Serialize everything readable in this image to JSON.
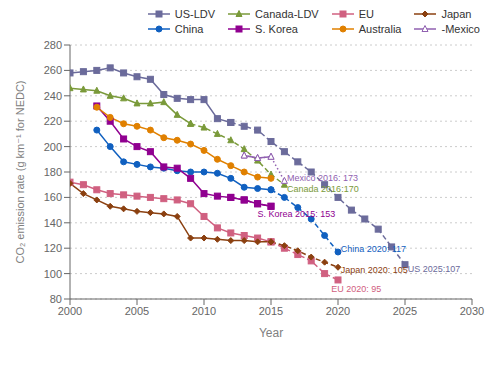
{
  "chart_data": {
    "type": "line",
    "xlabel": "Year",
    "ylabel": "CO₂ emission rate (g km⁻¹ for NEDC)",
    "xlim": [
      2000,
      2030
    ],
    "ylim": [
      80,
      280
    ],
    "xticks": [
      2000,
      2005,
      2010,
      2015,
      2020,
      2025,
      2030
    ],
    "yticks": [
      80,
      100,
      120,
      140,
      160,
      180,
      200,
      220,
      240,
      260,
      280
    ],
    "grid": true,
    "legend": "upper right",
    "series": [
      {
        "name": "US-LDV",
        "color": "#6b6b9b",
        "marker": "square",
        "line_style": "solid",
        "x": [
          2000,
          2001,
          2002,
          2003,
          2004,
          2005,
          2006,
          2007,
          2008,
          2009,
          2010,
          2011,
          2012
        ],
        "values": [
          258,
          259,
          260,
          262,
          258,
          255,
          253,
          241,
          238,
          237,
          237,
          222,
          219
        ],
        "target": {
          "x": [
            2012,
            2013,
            2014,
            2015,
            2016,
            2017,
            2018,
            2019,
            2020,
            2021,
            2022,
            2023,
            2024,
            2025
          ],
          "values": [
            219,
            216,
            213,
            204,
            196,
            188,
            180,
            170,
            160,
            150,
            143,
            135,
            121,
            107
          ],
          "line_style": "dashed"
        }
      },
      {
        "name": "Canada-LDV",
        "color": "#7a9a3a",
        "marker": "triangle",
        "line_style": "solid",
        "x": [
          2000,
          2001,
          2002,
          2003,
          2004,
          2005,
          2006,
          2007,
          2008,
          2009
        ],
        "values": [
          246,
          245,
          244,
          240,
          238,
          234,
          234,
          235,
          225,
          218
        ],
        "target": {
          "x": [
            2009,
            2010,
            2011,
            2012,
            2013,
            2014,
            2015,
            2016
          ],
          "values": [
            218,
            215,
            210,
            205,
            198,
            189,
            178,
            170
          ],
          "line_style": "dashed"
        }
      },
      {
        "name": "EU",
        "color": "#d06080",
        "marker": "square",
        "line_style": "solid",
        "x": [
          2000,
          2001,
          2002,
          2003,
          2004,
          2005,
          2006,
          2007,
          2008,
          2009,
          2010,
          2011,
          2012,
          2013,
          2014,
          2015
        ],
        "values": [
          172,
          170,
          166,
          163,
          162,
          161,
          160,
          159,
          158,
          155,
          145,
          136,
          132,
          130,
          128,
          125
        ],
        "target": {
          "x": [
            2015,
            2016,
            2017,
            2018,
            2019,
            2020
          ],
          "values": [
            125,
            120,
            115,
            110,
            100,
            95
          ],
          "line_style": "dashed"
        }
      },
      {
        "name": "Japan",
        "color": "#8b4010",
        "marker": "diamond",
        "line_style": "solid",
        "x": [
          2000,
          2001,
          2002,
          2003,
          2004,
          2005,
          2006,
          2007,
          2008,
          2009,
          2010,
          2011,
          2012,
          2013,
          2014,
          2015
        ],
        "values": [
          171,
          163,
          158,
          153,
          151,
          149,
          148,
          147,
          145,
          128,
          128,
          127,
          126,
          126,
          125,
          125
        ],
        "target": {
          "x": [
            2015,
            2016,
            2017,
            2018,
            2019,
            2020
          ],
          "values": [
            125,
            122,
            118,
            113,
            109,
            105
          ],
          "line_style": "dashed"
        }
      },
      {
        "name": "China",
        "color": "#1060c0",
        "marker": "circle",
        "line_style": "solid",
        "x": [
          2002,
          2003,
          2004,
          2005,
          2006,
          2007,
          2008,
          2009,
          2010,
          2011,
          2012,
          2013,
          2014,
          2015
        ],
        "values": [
          213,
          200,
          188,
          186,
          184,
          183,
          181,
          180,
          180,
          179,
          175,
          168,
          167,
          166
        ],
        "target": {
          "x": [
            2015,
            2016,
            2017,
            2018,
            2019,
            2020
          ],
          "values": [
            166,
            160,
            152,
            143,
            130,
            117
          ],
          "line_style": "dashed"
        }
      },
      {
        "name": "S. Korea",
        "color": "#900090",
        "marker": "square",
        "line_style": "solid",
        "x": [
          2002,
          2003,
          2004,
          2005,
          2006,
          2007,
          2008,
          2009,
          2010,
          2011,
          2012,
          2013,
          2014,
          2015
        ],
        "values": [
          232,
          220,
          206,
          200,
          196,
          184,
          183,
          175,
          163,
          161,
          160,
          158,
          155,
          153
        ],
        "target": {
          "x": [
            2012,
            2013,
            2014,
            2015
          ],
          "values": [
            160,
            158,
            155,
            153
          ],
          "line_style": "dashed"
        }
      },
      {
        "name": "Australia",
        "color": "#e08000",
        "marker": "circle",
        "line_style": "solid",
        "x": [
          2002,
          2003,
          2004,
          2005,
          2006,
          2007,
          2008,
          2009,
          2010,
          2011,
          2012,
          2013,
          2014,
          2015
        ],
        "values": [
          231,
          223,
          218,
          216,
          213,
          207,
          205,
          202,
          197,
          190,
          185,
          180,
          176,
          175
        ]
      },
      {
        "name": "-Mexico",
        "color": "#9060b0",
        "marker": "triangle_open",
        "line_style": "solid",
        "x": [
          2013,
          2014,
          2015
        ],
        "values": [
          193,
          191,
          192
        ],
        "target": {
          "x": [
            2013,
            2014,
            2015,
            2016
          ],
          "values": [
            193,
            191,
            192,
            173
          ],
          "line_style": "dotted"
        }
      }
    ],
    "annotations": [
      {
        "text": "Mexico 2016: 173",
        "x": 2016.2,
        "y": 175,
        "color": "#9060b0"
      },
      {
        "text": "Canada 2016:170",
        "x": 2016.2,
        "y": 167,
        "color": "#7a9a3a"
      },
      {
        "text": "S. Korea 2015: 153",
        "x": 2014.0,
        "y": 147,
        "color": "#900090"
      },
      {
        "text": "China 2020: 117",
        "x": 2020.2,
        "y": 119,
        "color": "#1060c0"
      },
      {
        "text": "Japan 2020: 105",
        "x": 2020.2,
        "y": 103,
        "color": "#8b4010"
      },
      {
        "text": "EU 2020: 95",
        "x": 2019.5,
        "y": 88,
        "color": "#d06080"
      },
      {
        "text": "US 2025:107",
        "x": 2025.2,
        "y": 104,
        "color": "#6b6b9b"
      }
    ]
  }
}
